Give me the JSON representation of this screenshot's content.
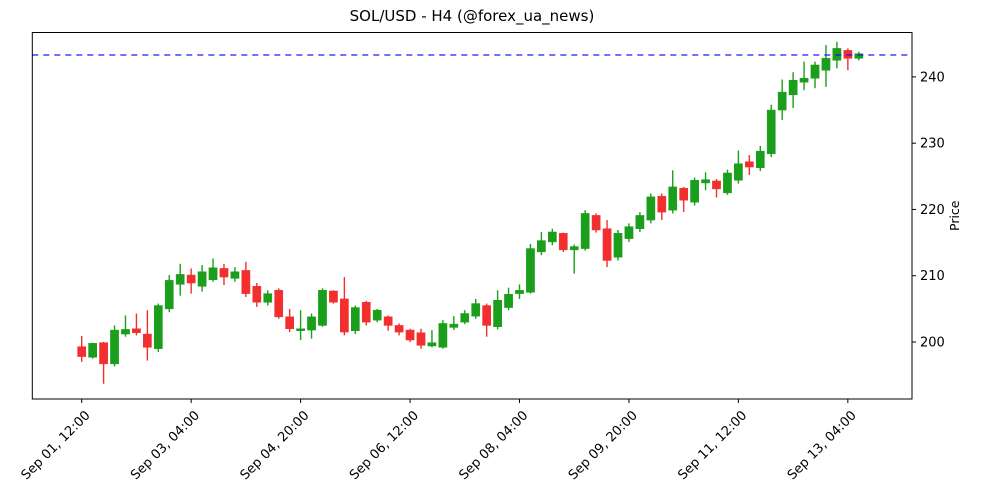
{
  "chart_data": {
    "type": "candlestick",
    "title": "SOL/USD - H4 (@forex_ua_news)",
    "symbol": "SOL/USD",
    "timeframe": "H4",
    "source_handle": "@forex_ua_news",
    "xlabel": "",
    "ylabel": "Price",
    "y_axis_side": "right",
    "grid": false,
    "ylim": [
      191.4,
      246.7
    ],
    "y_ticks": [
      200,
      210,
      220,
      230,
      240
    ],
    "x_ticks": [
      {
        "index": 0,
        "label": "Sep 01, 12:00"
      },
      {
        "index": 10,
        "label": "Sep 03, 04:00"
      },
      {
        "index": 20,
        "label": "Sep 04, 20:00"
      },
      {
        "index": 30,
        "label": "Sep 06, 12:00"
      },
      {
        "index": 40,
        "label": "Sep 08, 04:00"
      },
      {
        "index": 50,
        "label": "Sep 09, 20:00"
      },
      {
        "index": 60,
        "label": "Sep 11, 12:00"
      },
      {
        "index": 70,
        "label": "Sep 13, 04:00"
      }
    ],
    "hline": {
      "price": 243.3,
      "color": "#1a1aff",
      "style": "dashed"
    },
    "colors": {
      "up": "#1b9e1b",
      "down": "#f22e2e",
      "axes": "#000000",
      "background": "#ffffff"
    },
    "candles_ohlc": [
      [
        199.3,
        200.9,
        197.0,
        197.8
      ],
      [
        197.7,
        199.9,
        197.5,
        199.8
      ],
      [
        199.9,
        200.0,
        193.7,
        196.7
      ],
      [
        196.7,
        202.5,
        196.3,
        201.8
      ],
      [
        201.2,
        204.0,
        200.8,
        201.9
      ],
      [
        202.0,
        204.3,
        201.0,
        201.4
      ],
      [
        201.2,
        204.8,
        197.2,
        199.2
      ],
      [
        199.0,
        205.8,
        198.5,
        205.5
      ],
      [
        205.0,
        210.1,
        204.5,
        209.3
      ],
      [
        208.7,
        211.8,
        207.0,
        210.2
      ],
      [
        210.1,
        211.1,
        207.3,
        208.9
      ],
      [
        208.4,
        211.6,
        207.6,
        210.6
      ],
      [
        209.4,
        212.6,
        209.1,
        211.2
      ],
      [
        211.1,
        211.8,
        208.6,
        209.8
      ],
      [
        209.6,
        211.3,
        209.1,
        210.6
      ],
      [
        210.8,
        212.1,
        206.8,
        207.3
      ],
      [
        208.4,
        208.9,
        205.3,
        206.0
      ],
      [
        206.0,
        207.8,
        205.5,
        207.3
      ],
      [
        207.8,
        208.1,
        203.5,
        203.8
      ],
      [
        203.8,
        205.0,
        201.5,
        202.0
      ],
      [
        201.7,
        204.8,
        200.3,
        202.0
      ],
      [
        201.8,
        204.3,
        200.5,
        203.8
      ],
      [
        202.5,
        208.1,
        202.3,
        207.8
      ],
      [
        207.7,
        207.8,
        205.8,
        206.0
      ],
      [
        206.5,
        209.8,
        201.0,
        201.5
      ],
      [
        201.7,
        205.5,
        201.2,
        205.2
      ],
      [
        206.0,
        206.2,
        202.5,
        203.0
      ],
      [
        203.3,
        205.0,
        203.0,
        204.8
      ],
      [
        203.8,
        204.0,
        201.7,
        202.5
      ],
      [
        202.5,
        202.8,
        201.0,
        201.5
      ],
      [
        201.8,
        202.0,
        200.0,
        200.3
      ],
      [
        201.4,
        202.0,
        199.0,
        199.5
      ],
      [
        199.4,
        201.8,
        199.2,
        199.9
      ],
      [
        199.2,
        203.3,
        199.0,
        202.8
      ],
      [
        202.2,
        203.9,
        201.8,
        202.7
      ],
      [
        203.0,
        204.8,
        202.7,
        204.3
      ],
      [
        203.9,
        206.5,
        203.5,
        205.8
      ],
      [
        205.5,
        205.8,
        200.8,
        202.5
      ],
      [
        202.3,
        207.8,
        201.9,
        206.3
      ],
      [
        205.2,
        208.2,
        204.8,
        207.2
      ],
      [
        207.3,
        208.7,
        206.5,
        207.8
      ],
      [
        207.5,
        214.8,
        207.3,
        214.1
      ],
      [
        213.6,
        216.6,
        213.1,
        215.3
      ],
      [
        215.1,
        217.1,
        214.6,
        216.6
      ],
      [
        216.4,
        216.5,
        213.6,
        213.9
      ],
      [
        213.9,
        214.7,
        210.3,
        214.4
      ],
      [
        214.1,
        219.9,
        213.8,
        219.4
      ],
      [
        219.1,
        219.4,
        216.5,
        216.9
      ],
      [
        217.1,
        218.4,
        211.3,
        212.3
      ],
      [
        212.8,
        216.9,
        212.3,
        216.4
      ],
      [
        215.6,
        217.9,
        215.1,
        217.4
      ],
      [
        217.1,
        219.6,
        216.6,
        219.1
      ],
      [
        218.4,
        222.4,
        217.9,
        221.9
      ],
      [
        222.0,
        222.4,
        218.4,
        219.6
      ],
      [
        219.9,
        225.9,
        219.4,
        223.4
      ],
      [
        223.2,
        223.4,
        219.6,
        221.4
      ],
      [
        221.1,
        224.8,
        220.6,
        224.4
      ],
      [
        224.0,
        225.6,
        222.9,
        224.5
      ],
      [
        224.3,
        224.6,
        221.8,
        223.1
      ],
      [
        222.5,
        226.0,
        222.2,
        225.5
      ],
      [
        224.4,
        228.9,
        223.9,
        226.9
      ],
      [
        227.2,
        228.2,
        225.2,
        226.4
      ],
      [
        226.3,
        229.6,
        225.8,
        228.8
      ],
      [
        228.4,
        235.8,
        227.9,
        235.0
      ],
      [
        235.0,
        239.6,
        233.5,
        237.7
      ],
      [
        237.3,
        240.7,
        235.3,
        239.5
      ],
      [
        239.2,
        242.3,
        238.0,
        239.8
      ],
      [
        239.8,
        242.3,
        238.3,
        241.8
      ],
      [
        241.0,
        244.8,
        238.5,
        242.8
      ],
      [
        242.5,
        245.3,
        241.3,
        244.3
      ],
      [
        244.0,
        244.3,
        241.0,
        242.8
      ],
      [
        242.8,
        243.8,
        242.5,
        243.5
      ]
    ]
  }
}
